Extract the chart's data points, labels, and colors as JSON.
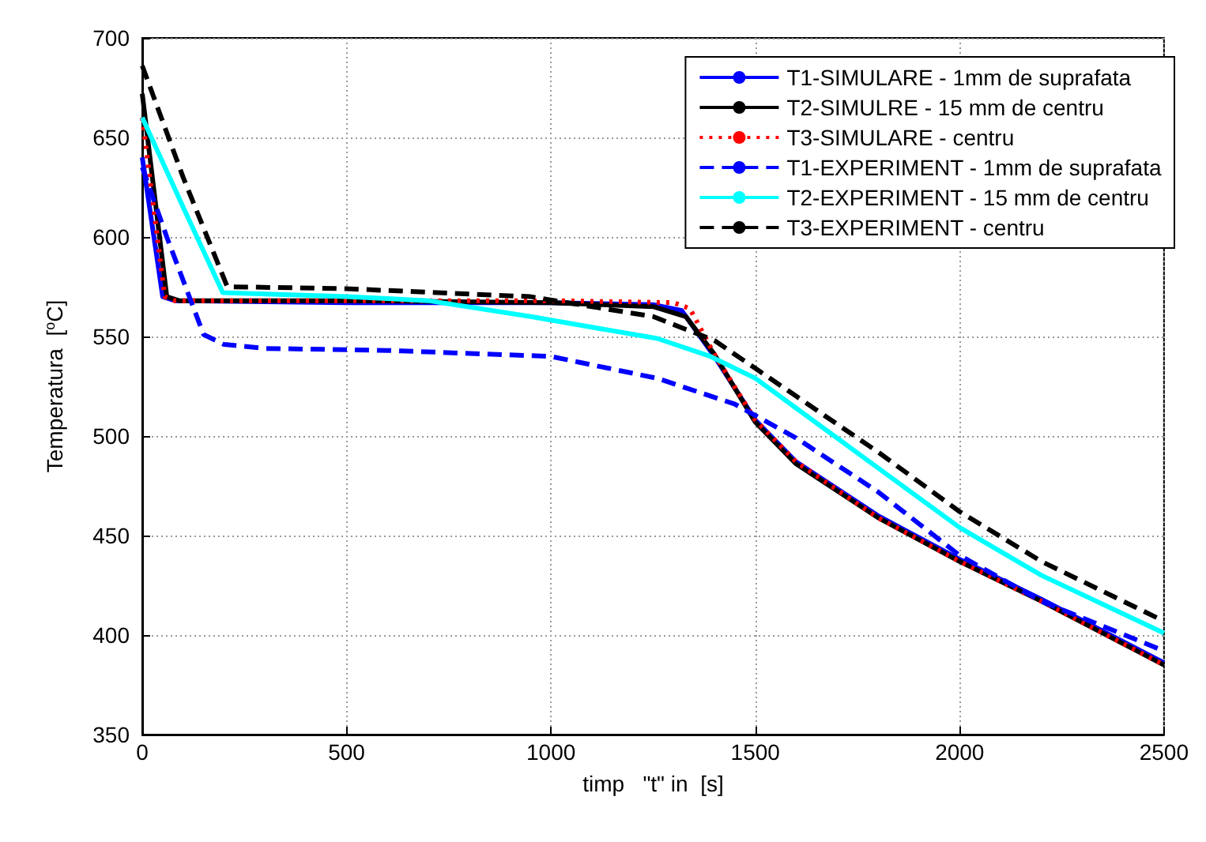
{
  "chart_data": {
    "type": "line",
    "xlabel": "timp   \"t\" in  [s]",
    "ylabel": "Temperatura  [$^{o}$C]",
    "xlim": [
      0,
      2500
    ],
    "xticks": [
      0,
      500,
      1000,
      1500,
      2000,
      2500
    ],
    "ylim": [
      350,
      700
    ],
    "yticks": [
      350,
      400,
      450,
      500,
      550,
      600,
      650,
      700
    ],
    "grid": true,
    "legend": "top right",
    "series": [
      {
        "name": "T1-SIMULARE - 1mm de suprafata",
        "color": "#0000ff",
        "line_style": "solid",
        "x": [
          0,
          50,
          80,
          500,
          1000,
          1250,
          1320,
          1400,
          1500,
          1600,
          1800,
          2000,
          2200,
          2500
        ],
        "values": [
          640,
          570,
          568,
          567,
          567,
          566,
          563,
          540,
          508,
          487,
          460,
          438,
          418,
          386
        ]
      },
      {
        "name": "T2-SIMULRE - 15 mm de centru",
        "color": "#000000",
        "line_style": "solid",
        "x": [
          0,
          60,
          90,
          500,
          1000,
          1250,
          1330,
          1400,
          1500,
          1600,
          1800,
          2000,
          2200,
          2500
        ],
        "values": [
          672,
          570,
          568,
          568,
          567,
          565,
          560,
          541,
          507,
          486,
          459,
          437,
          417,
          385
        ]
      },
      {
        "name": "T3-SIMULARE - centru",
        "color": "#ff0000",
        "line_style": "dotted",
        "x": [
          0,
          55,
          80,
          500,
          1000,
          1300,
          1340,
          1400,
          1500,
          1600,
          1800,
          2000,
          2200,
          2500
        ],
        "values": [
          660,
          570,
          568,
          568,
          568,
          567,
          564,
          541,
          508,
          487,
          459,
          437,
          417,
          385
        ]
      },
      {
        "name": "T1-EXPERIMENT - 1mm de suprafata",
        "color": "#0000ff",
        "line_style": "dashed",
        "x": [
          0,
          60,
          150,
          200,
          300,
          600,
          1000,
          1070,
          1260,
          1450,
          1600,
          1800,
          2000,
          2200,
          2500
        ],
        "values": [
          635,
          600,
          551,
          546,
          544,
          543,
          540,
          537,
          529,
          516,
          499,
          472,
          440,
          417,
          392
        ]
      },
      {
        "name": "T2-EXPERIMENT - 15 mm de centru",
        "color": "#00ffff",
        "line_style": "solid",
        "x": [
          0,
          100,
          197,
          500,
          700,
          950,
          1260,
          1390,
          1500,
          1600,
          1800,
          2000,
          2200,
          2500
        ],
        "values": [
          660,
          615,
          572,
          570,
          568,
          560,
          549,
          540,
          529,
          514,
          484,
          454,
          430,
          401
        ]
      },
      {
        "name": "T3-EXPERIMENT - centru",
        "color": "#000000",
        "line_style": "dashed",
        "x": [
          0,
          100,
          208,
          500,
          950,
          1250,
          1300,
          1400,
          1500,
          1600,
          1800,
          2000,
          2200,
          2500
        ],
        "values": [
          686,
          630,
          575,
          574,
          570,
          560,
          556,
          548,
          534,
          520,
          492,
          462,
          437,
          407
        ]
      }
    ]
  }
}
